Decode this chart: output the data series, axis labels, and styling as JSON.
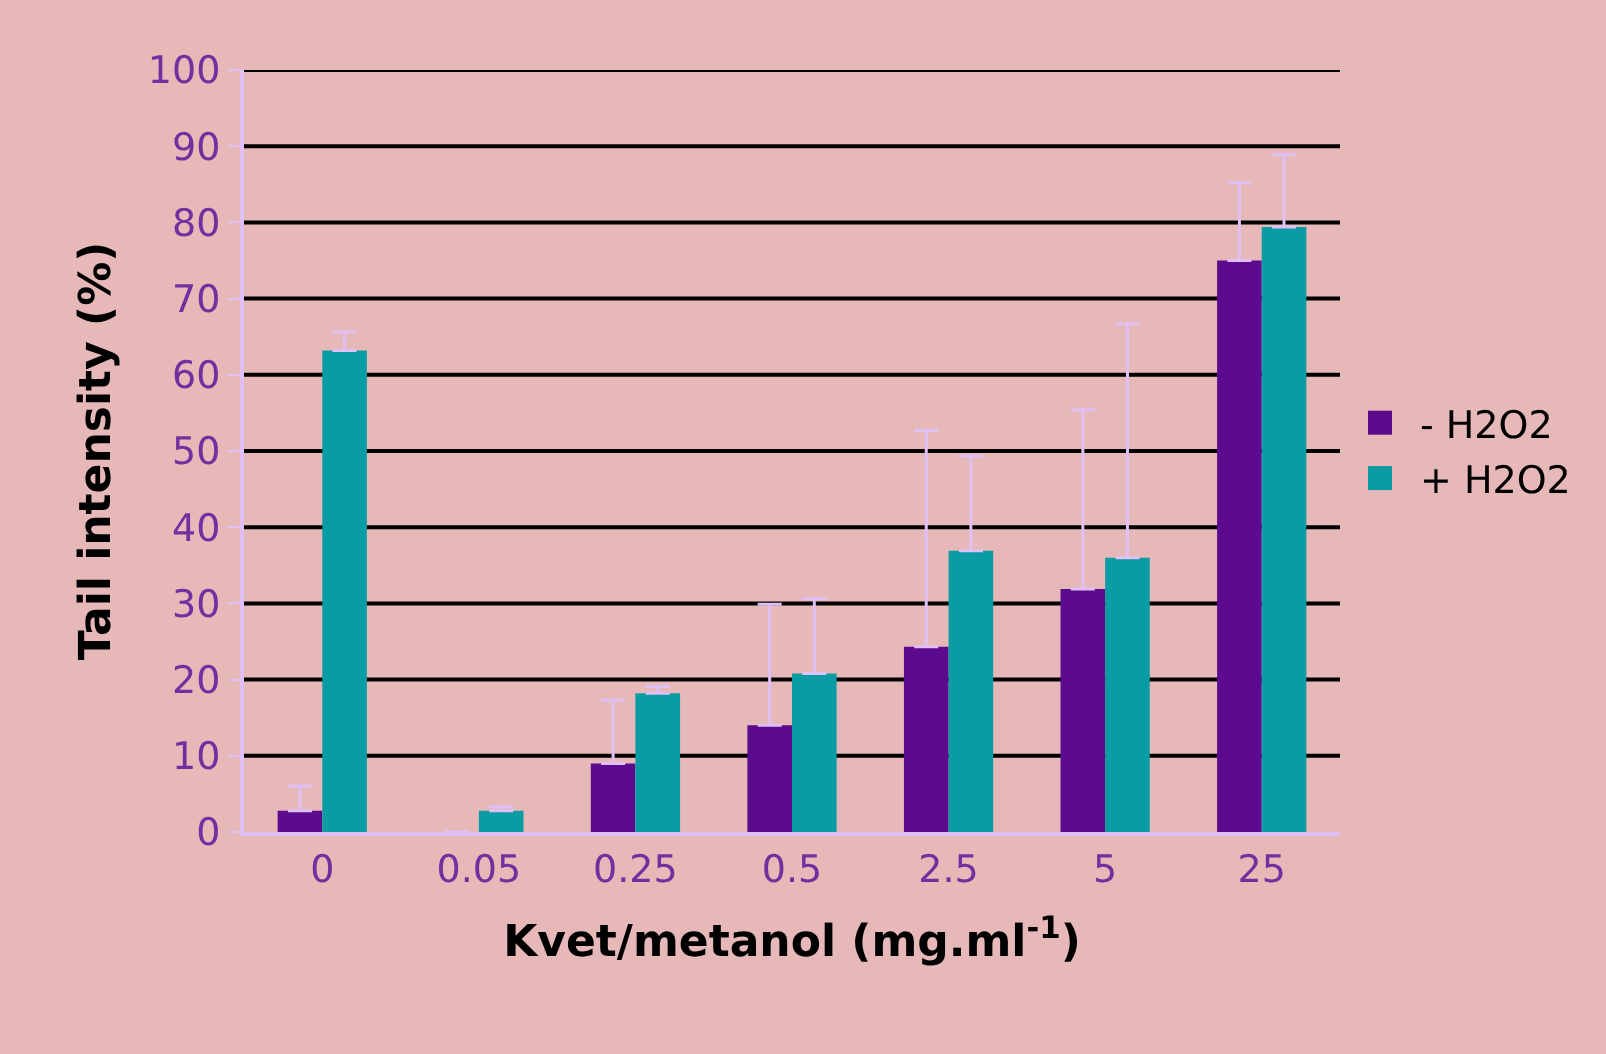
{
  "chart_data": {
    "type": "bar",
    "xlabel": "Kvet/metanol (mg.ml$^{-1}$)",
    "ylabel": "Tail intensity (%)",
    "categories": [
      "0",
      "0.05",
      "0.25",
      "0.5",
      "2.5",
      "5",
      "25"
    ],
    "series": [
      {
        "name": "- H2O2",
        "color": "#5c0a8e",
        "values": [
          2.8,
          0,
          9.0,
          14.0,
          24.3,
          31.9,
          75.0
        ],
        "errors": [
          [
            2.8,
            6.0
          ],
          null,
          [
            9.0,
            17.3
          ],
          [
            14.0,
            29.9
          ],
          [
            24.3,
            52.7
          ],
          [
            31.9,
            55.4
          ],
          [
            75.0,
            85.2
          ]
        ]
      },
      {
        "name": "+ H2O2",
        "color": "#0a9ca4",
        "values": [
          63.2,
          2.8,
          18.2,
          20.8,
          36.9,
          36.0,
          79.4
        ],
        "errors": [
          [
            63.2,
            65.6
          ],
          [
            2.8,
            3.3
          ],
          [
            18.2,
            19.1
          ],
          [
            20.8,
            30.6
          ],
          [
            36.9,
            49.3
          ],
          [
            36.0,
            66.7
          ],
          [
            79.4,
            88.9
          ]
        ]
      }
    ],
    "ylim": [
      0,
      100
    ],
    "yticks": [
      0,
      10,
      20,
      30,
      40,
      50,
      60,
      70,
      80,
      90,
      100
    ],
    "grid": "y",
    "legend": "right"
  }
}
